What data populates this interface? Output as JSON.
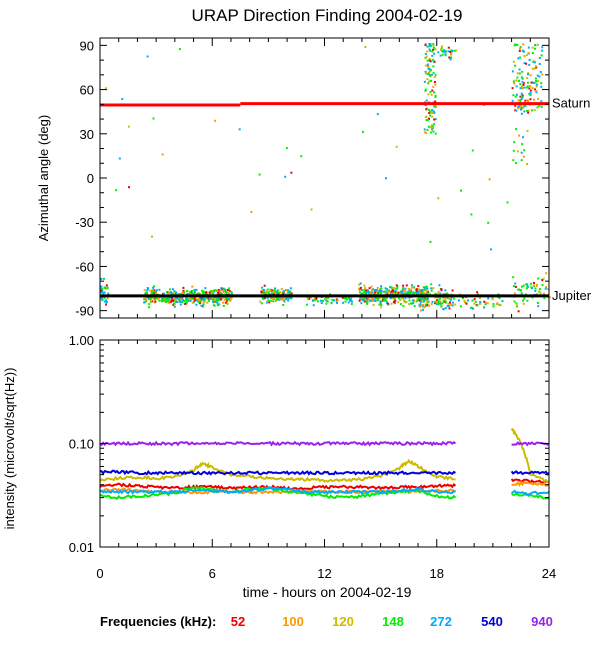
{
  "title": "URAP Direction Finding  2004-02-19",
  "x_axis": {
    "label": "time - hours on 2004-02-19",
    "range": [
      0,
      24
    ],
    "major_ticks": [
      0,
      6,
      12,
      18,
      24
    ],
    "major_tick_labels": [
      "0",
      "6",
      "12",
      "18",
      "24"
    ],
    "minor_step": 1
  },
  "legend": {
    "label": "Frequencies (kHz):",
    "items": [
      {
        "text": "52",
        "color": "#ee0000"
      },
      {
        "text": "100",
        "color": "#ff9900"
      },
      {
        "text": "120",
        "color": "#ccbb00"
      },
      {
        "text": "148",
        "color": "#00ee00"
      },
      {
        "text": "272",
        "color": "#00aaff"
      },
      {
        "text": "540",
        "color": "#0000dd"
      },
      {
        "text": "940",
        "color": "#9922ee"
      }
    ]
  },
  "chart_data": [
    {
      "type": "scatter",
      "title": "URAP Direction Finding  2004-02-19",
      "xlabel": "",
      "ylabel": "Azimuthal angle (deg)",
      "xlim": [
        0,
        24
      ],
      "ylim": [
        -95,
        95
      ],
      "y_ticks": [
        -90,
        -60,
        -30,
        0,
        30,
        60,
        90
      ],
      "y_tick_labels": [
        "-90",
        "-60",
        "-30",
        "0",
        "30",
        "60",
        "90"
      ],
      "reference_lines": [
        {
          "name": "Saturn",
          "color": "#ff0000",
          "segments": [
            {
              "x": [
                0,
                7.5
              ],
              "y": 49.5
            },
            {
              "x": [
                7.5,
                24
              ],
              "y": 50.5
            }
          ]
        },
        {
          "name": "Jupiter",
          "color": "#000000",
          "segments": [
            {
              "x": [
                0,
                24
              ],
              "y": -80
            }
          ]
        }
      ],
      "scatter_clusters": [
        {
          "x": [
            0,
            0.4
          ],
          "y": [
            -90,
            -65
          ],
          "count": 30
        },
        {
          "x": [
            2.3,
            7.0
          ],
          "y": [
            -88,
            -72
          ],
          "count": 480
        },
        {
          "x": [
            8.5,
            10.2
          ],
          "y": [
            -86,
            -72
          ],
          "count": 180
        },
        {
          "x": [
            11.0,
            13.5
          ],
          "y": [
            -88,
            -76
          ],
          "count": 60
        },
        {
          "x": [
            13.8,
            17.5
          ],
          "y": [
            -88,
            -70
          ],
          "count": 420
        },
        {
          "x": [
            17.0,
            18.8
          ],
          "y": [
            -92,
            -70
          ],
          "count": 120
        },
        {
          "x": [
            18.8,
            21.5
          ],
          "y": [
            -90,
            -75
          ],
          "count": 50
        },
        {
          "x": [
            22.0,
            24.0
          ],
          "y": [
            -92,
            -60
          ],
          "count": 60
        },
        {
          "x": [
            17.3,
            17.9
          ],
          "y": [
            30,
            92
          ],
          "count": 120
        },
        {
          "x": [
            18.0,
            19.0
          ],
          "y": [
            80,
            92
          ],
          "count": 25
        },
        {
          "x": [
            22.0,
            23.6
          ],
          "y": [
            45,
            92
          ],
          "count": 150
        },
        {
          "x": [
            22.0,
            22.8
          ],
          "y": [
            5,
            40
          ],
          "count": 15
        },
        {
          "x": [
            0,
            24
          ],
          "y": [
            -50,
            90
          ],
          "count": 40
        }
      ],
      "label_positions": "right"
    },
    {
      "type": "line",
      "ylabel": "intensity (microvolt/sqrt(Hz))",
      "xlabel": "time - hours on 2004-02-19",
      "xlim": [
        0,
        24
      ],
      "yscale": "log",
      "ylim": [
        0.01,
        1.0
      ],
      "y_ticks": [
        0.01,
        0.1,
        1.0
      ],
      "y_tick_labels": [
        "0.01",
        "0.10",
        "1.00"
      ],
      "data_gap": [
        19.0,
        22.0
      ],
      "series": [
        {
          "name": "52",
          "color": "#ee0000",
          "x": [
            0,
            1,
            2,
            3,
            4,
            5,
            6,
            7,
            8,
            9,
            10,
            11,
            12,
            13,
            14,
            15,
            16,
            17,
            18,
            19,
            22,
            23,
            24
          ],
          "values": [
            0.039,
            0.04,
            0.039,
            0.038,
            0.037,
            0.038,
            0.038,
            0.037,
            0.038,
            0.038,
            0.037,
            0.037,
            0.038,
            0.038,
            0.038,
            0.037,
            0.038,
            0.038,
            0.039,
            0.039,
            0.045,
            0.043,
            0.042
          ]
        },
        {
          "name": "100",
          "color": "#ff9900",
          "x": [
            0,
            1,
            2,
            3,
            4,
            5,
            6,
            7,
            8,
            9,
            10,
            11,
            12,
            13,
            14,
            15,
            16,
            17,
            18,
            19,
            22,
            23,
            24
          ],
          "values": [
            0.035,
            0.036,
            0.035,
            0.034,
            0.034,
            0.034,
            0.034,
            0.034,
            0.034,
            0.034,
            0.034,
            0.034,
            0.034,
            0.034,
            0.034,
            0.034,
            0.034,
            0.035,
            0.035,
            0.035,
            0.04,
            0.042,
            0.04
          ]
        },
        {
          "name": "120",
          "color": "#ccbb00",
          "x": [
            0,
            1,
            2,
            3,
            4,
            5,
            5.5,
            6,
            7,
            8,
            9,
            10,
            11,
            12,
            13,
            14,
            15,
            16,
            16.5,
            17,
            18,
            19,
            22,
            22.5,
            23,
            24
          ],
          "values": [
            0.044,
            0.046,
            0.047,
            0.046,
            0.048,
            0.055,
            0.065,
            0.058,
            0.05,
            0.048,
            0.046,
            0.045,
            0.045,
            0.044,
            0.044,
            0.045,
            0.048,
            0.058,
            0.068,
            0.06,
            0.048,
            0.045,
            0.14,
            0.1,
            0.05,
            0.042
          ]
        },
        {
          "name": "148",
          "color": "#00ee00",
          "x": [
            0,
            1,
            2,
            3,
            4,
            5,
            6,
            7,
            8,
            9,
            10,
            11,
            12,
            13,
            14,
            15,
            16,
            17,
            18,
            19,
            22,
            23,
            24
          ],
          "values": [
            0.031,
            0.03,
            0.031,
            0.032,
            0.033,
            0.038,
            0.036,
            0.034,
            0.036,
            0.037,
            0.035,
            0.033,
            0.031,
            0.03,
            0.031,
            0.033,
            0.034,
            0.035,
            0.031,
            0.03,
            0.032,
            0.031,
            0.03
          ]
        },
        {
          "name": "272",
          "color": "#00aaff",
          "x": [
            0,
            1,
            2,
            3,
            4,
            5,
            6,
            7,
            8,
            9,
            10,
            11,
            12,
            13,
            14,
            15,
            16,
            17,
            18,
            19,
            22,
            23,
            24
          ],
          "values": [
            0.034,
            0.034,
            0.034,
            0.034,
            0.034,
            0.035,
            0.035,
            0.034,
            0.035,
            0.037,
            0.036,
            0.034,
            0.034,
            0.034,
            0.034,
            0.034,
            0.035,
            0.036,
            0.034,
            0.034,
            0.034,
            0.033,
            0.034
          ]
        },
        {
          "name": "540",
          "color": "#0000dd",
          "x": [
            0,
            1,
            2,
            3,
            4,
            5,
            6,
            7,
            8,
            9,
            10,
            11,
            12,
            13,
            14,
            15,
            16,
            17,
            18,
            19,
            22,
            23,
            24
          ],
          "values": [
            0.053,
            0.053,
            0.052,
            0.052,
            0.052,
            0.052,
            0.052,
            0.052,
            0.052,
            0.052,
            0.052,
            0.052,
            0.052,
            0.052,
            0.052,
            0.052,
            0.052,
            0.052,
            0.052,
            0.052,
            0.053,
            0.052,
            0.052
          ]
        },
        {
          "name": "940",
          "color": "#9922ee",
          "x": [
            0,
            1,
            2,
            3,
            4,
            5,
            6,
            7,
            8,
            9,
            10,
            11,
            12,
            13,
            14,
            15,
            16,
            17,
            18,
            19,
            22,
            23,
            24
          ],
          "values": [
            0.1,
            0.1,
            0.1,
            0.1,
            0.1,
            0.1,
            0.1,
            0.1,
            0.1,
            0.1,
            0.1,
            0.1,
            0.1,
            0.1,
            0.1,
            0.1,
            0.1,
            0.1,
            0.1,
            0.1,
            0.1,
            0.1,
            0.1
          ]
        }
      ]
    }
  ]
}
